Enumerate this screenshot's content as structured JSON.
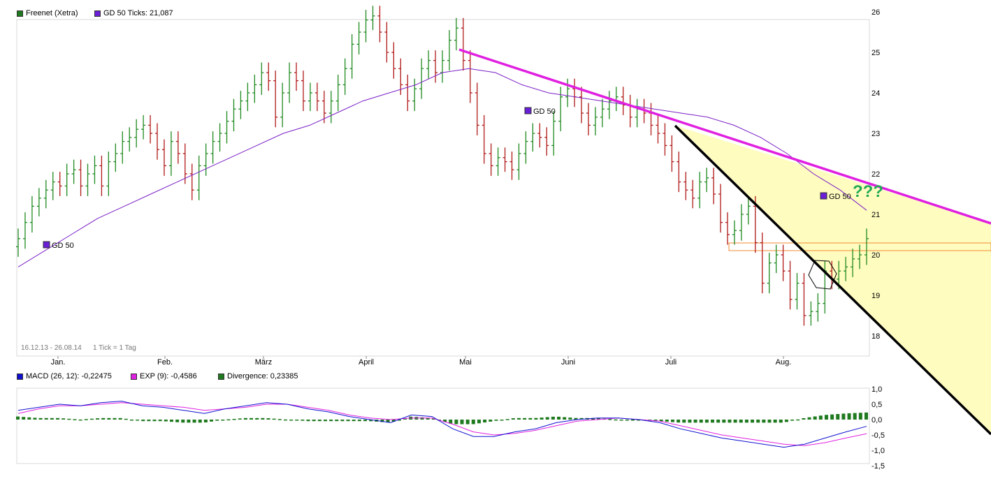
{
  "legend_top": [
    {
      "label": "Freenet (Xetra)",
      "color": "#1f7a1f"
    },
    {
      "label": "GD 50 Ticks: 21,087",
      "color": "#6a1fd6"
    }
  ],
  "legend_bottom": [
    {
      "label": "MACD (26, 12): -0,22475",
      "color": "#1010d0"
    },
    {
      "label": "EXP (9): -0,4586",
      "color": "#e020e0"
    },
    {
      "label": "Divergence: 0,23385",
      "color": "#1f7a1f"
    }
  ],
  "annotations": {
    "gd50_label": "GD 50",
    "question": "???",
    "date_range": "16.12.13 - 26.08.14",
    "tick_info": "1 Tick = 1 Tag"
  },
  "colors": {
    "up": "#1f8a1f",
    "down": "#b01818",
    "ma": "#7a1fc6",
    "trend_magenta": "#e020e0",
    "trend_black": "#000000",
    "fill": "#fffcc0",
    "box": "#f08a30",
    "question": "#22aa55",
    "macd": "#1010d0",
    "signal": "#e020e0",
    "hist": "#1f7a1f"
  },
  "chart_data": [
    {
      "type": "ohlc",
      "title": "Freenet (Xetra)",
      "xlabel": "",
      "ylabel": "",
      "x_ticks": [
        "Jan.",
        "Feb.",
        "März",
        "April",
        "Mai",
        "Juni",
        "Juli",
        "Aug."
      ],
      "y_ticks": [
        18,
        19,
        20,
        21,
        22,
        23,
        24,
        25,
        26
      ],
      "ylim": [
        17.3,
        26.9
      ],
      "grid": false,
      "series": [
        {
          "name": "Freenet (Xetra)",
          "values": [
            20.4,
            20.8,
            21.2,
            21.4,
            21.6,
            21.8,
            21.7,
            22.0,
            22.1,
            21.7,
            22.0,
            22.2,
            21.7,
            22.3,
            22.5,
            22.8,
            22.9,
            23.1,
            23.2,
            23.0,
            22.6,
            22.2,
            22.8,
            22.5,
            22.0,
            21.6,
            22.2,
            22.5,
            22.8,
            23.0,
            23.3,
            23.6,
            23.8,
            24.0,
            24.2,
            24.5,
            24.3,
            23.4,
            24.0,
            24.5,
            24.3,
            23.8,
            24.0,
            23.8,
            23.5,
            23.8,
            24.2,
            24.6,
            25.2,
            25.5,
            25.8,
            25.9,
            25.5,
            25.0,
            24.6,
            24.2,
            23.8,
            24.1,
            24.6,
            24.8,
            24.5,
            24.8,
            25.3,
            25.6,
            24.8,
            24.0,
            23.2,
            22.5,
            22.2,
            22.4,
            22.3,
            22.1,
            22.5,
            22.8,
            23.0,
            22.9,
            22.7,
            23.3,
            23.9,
            24.1,
            23.9,
            23.5,
            23.2,
            23.4,
            23.6,
            23.8,
            23.9,
            23.7,
            23.4,
            23.6,
            23.5,
            23.2,
            23.0,
            22.7,
            22.3,
            21.8,
            21.6,
            21.4,
            21.8,
            21.9,
            21.5,
            20.8,
            20.5,
            20.6,
            21.0,
            21.2,
            20.3,
            19.3,
            19.8,
            20.0,
            19.6,
            18.9,
            19.3,
            18.5,
            18.6,
            18.8,
            19.6,
            19.4,
            19.6,
            19.7,
            19.9,
            20.0,
            20.4
          ]
        },
        {
          "name": "GD 50",
          "values": [
            19.7,
            20.1,
            20.5,
            20.9,
            21.2,
            21.5,
            21.8,
            22.1,
            22.4,
            22.7,
            23.0,
            23.2,
            23.5,
            23.8,
            24.0,
            24.2,
            24.5,
            24.6,
            24.5,
            24.2,
            24.0,
            23.9,
            23.8,
            23.7,
            23.6,
            23.5,
            23.4,
            23.2,
            22.9,
            22.5,
            22.0,
            21.6,
            21.1
          ]
        }
      ]
    },
    {
      "type": "line",
      "title": "MACD",
      "xlabel": "",
      "ylabel": "",
      "y_ticks": [
        "1,0",
        "0,5",
        "0,0",
        "-0,5",
        "-1,0",
        "-1,5"
      ],
      "ylim": [
        -1.5,
        1.0
      ],
      "series": [
        {
          "name": "MACD (26, 12)",
          "values": [
            0.3,
            0.4,
            0.5,
            0.45,
            0.55,
            0.6,
            0.45,
            0.4,
            0.3,
            0.2,
            0.35,
            0.45,
            0.55,
            0.5,
            0.35,
            0.25,
            0.1,
            0.0,
            -0.1,
            0.15,
            0.1,
            -0.3,
            -0.55,
            -0.55,
            -0.4,
            -0.3,
            -0.1,
            0.0,
            0.05,
            0.05,
            0.0,
            -0.1,
            -0.3,
            -0.45,
            -0.6,
            -0.7,
            -0.8,
            -0.9,
            -0.8,
            -0.6,
            -0.4,
            -0.22
          ]
        },
        {
          "name": "EXP (9)",
          "values": [
            0.2,
            0.35,
            0.45,
            0.45,
            0.5,
            0.55,
            0.5,
            0.45,
            0.4,
            0.3,
            0.35,
            0.4,
            0.5,
            0.5,
            0.4,
            0.3,
            0.15,
            0.05,
            0.0,
            0.05,
            0.05,
            -0.15,
            -0.4,
            -0.5,
            -0.45,
            -0.35,
            -0.2,
            -0.05,
            0.0,
            0.05,
            0.0,
            -0.05,
            -0.2,
            -0.35,
            -0.5,
            -0.6,
            -0.7,
            -0.8,
            -0.85,
            -0.75,
            -0.6,
            -0.46
          ]
        },
        {
          "name": "Divergence",
          "values": [
            0.1,
            0.05,
            0.05,
            0.0,
            0.05,
            0.05,
            -0.05,
            -0.05,
            -0.1,
            -0.1,
            0.0,
            0.05,
            0.05,
            0.0,
            -0.05,
            -0.05,
            -0.05,
            -0.05,
            -0.1,
            0.1,
            0.05,
            -0.15,
            -0.15,
            -0.05,
            0.05,
            0.05,
            0.1,
            0.05,
            0.05,
            0.0,
            0.0,
            -0.05,
            -0.1,
            -0.1,
            -0.1,
            -0.1,
            -0.1,
            -0.1,
            0.05,
            0.15,
            0.2,
            0.23
          ]
        }
      ]
    }
  ]
}
